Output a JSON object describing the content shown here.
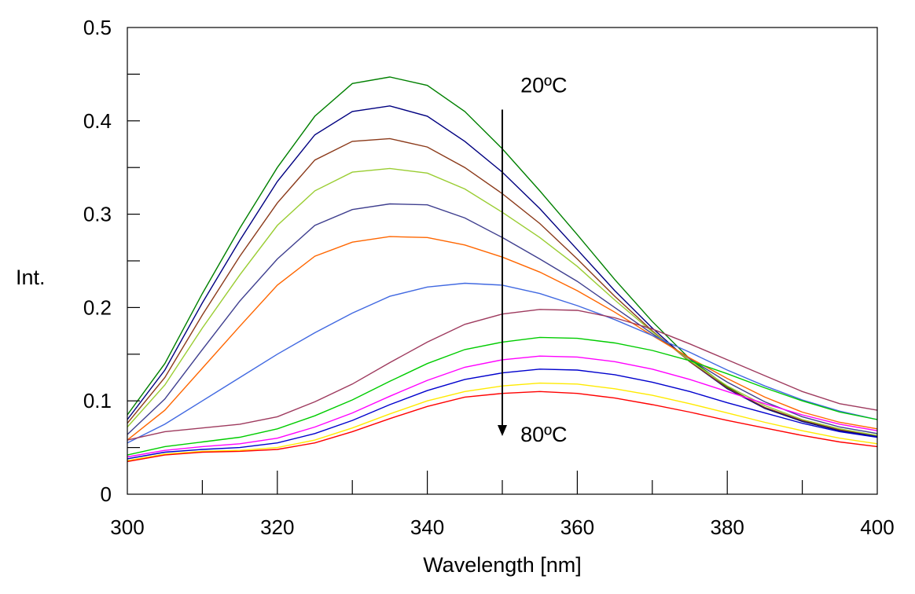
{
  "chart_data": {
    "type": "line",
    "xlabel": "Wavelength [nm]",
    "ylabel": "Int.",
    "xlim": [
      300,
      400
    ],
    "ylim": [
      0,
      0.5
    ],
    "x_ticks": [
      300,
      320,
      340,
      360,
      380,
      400
    ],
    "y_ticks": [
      0,
      0.1,
      0.2,
      0.3,
      0.4,
      0.5
    ],
    "x_minor_step": 10,
    "y_minor_step": 0.05,
    "grid": false,
    "legend": "none",
    "annotations": [
      {
        "text": "20ºC",
        "x": 352,
        "y": 0.438
      },
      {
        "text": "80ºC",
        "x": 352,
        "y": 0.064
      }
    ],
    "arrow": {
      "x": 350,
      "y_start": 0.412,
      "y_end": 0.064
    },
    "x": [
      300,
      305,
      310,
      315,
      320,
      325,
      330,
      335,
      340,
      345,
      350,
      355,
      360,
      365,
      370,
      375,
      380,
      385,
      390,
      395,
      400
    ],
    "series": [
      {
        "color": "#008000",
        "values": [
          0.085,
          0.14,
          0.215,
          0.285,
          0.35,
          0.405,
          0.44,
          0.447,
          0.438,
          0.41,
          0.37,
          0.325,
          0.278,
          0.23,
          0.185,
          0.145,
          0.115,
          0.092,
          0.078,
          0.068,
          0.062
        ]
      },
      {
        "color": "#000080",
        "values": [
          0.08,
          0.133,
          0.205,
          0.272,
          0.335,
          0.385,
          0.41,
          0.416,
          0.405,
          0.378,
          0.345,
          0.306,
          0.262,
          0.218,
          0.178,
          0.142,
          0.113,
          0.092,
          0.078,
          0.068,
          0.062
        ]
      },
      {
        "color": "#8B3A1A",
        "values": [
          0.076,
          0.125,
          0.192,
          0.255,
          0.312,
          0.358,
          0.378,
          0.381,
          0.372,
          0.35,
          0.322,
          0.29,
          0.252,
          0.212,
          0.175,
          0.142,
          0.114,
          0.093,
          0.079,
          0.069,
          0.063
        ]
      },
      {
        "color": "#9ACD32",
        "values": [
          0.072,
          0.117,
          0.178,
          0.235,
          0.288,
          0.325,
          0.345,
          0.349,
          0.344,
          0.327,
          0.302,
          0.275,
          0.244,
          0.208,
          0.174,
          0.143,
          0.116,
          0.095,
          0.08,
          0.07,
          0.063
        ]
      },
      {
        "color": "#3F3F8F",
        "values": [
          0.064,
          0.102,
          0.155,
          0.207,
          0.252,
          0.288,
          0.305,
          0.311,
          0.31,
          0.296,
          0.275,
          0.252,
          0.228,
          0.2,
          0.172,
          0.145,
          0.12,
          0.099,
          0.083,
          0.072,
          0.065
        ]
      },
      {
        "color": "#FF6600",
        "values": [
          0.058,
          0.09,
          0.135,
          0.18,
          0.224,
          0.255,
          0.27,
          0.276,
          0.275,
          0.267,
          0.254,
          0.238,
          0.218,
          0.195,
          0.17,
          0.146,
          0.124,
          0.104,
          0.088,
          0.077,
          0.07
        ]
      },
      {
        "color": "#4169E1",
        "values": [
          0.055,
          0.075,
          0.1,
          0.125,
          0.15,
          0.173,
          0.194,
          0.212,
          0.222,
          0.226,
          0.224,
          0.215,
          0.202,
          0.187,
          0.17,
          0.152,
          0.133,
          0.116,
          0.101,
          0.089,
          0.08
        ]
      },
      {
        "color": "#9E3A5E",
        "values": [
          0.058,
          0.067,
          0.071,
          0.075,
          0.083,
          0.099,
          0.118,
          0.141,
          0.163,
          0.182,
          0.193,
          0.198,
          0.197,
          0.189,
          0.177,
          0.161,
          0.144,
          0.127,
          0.11,
          0.097,
          0.09
        ]
      },
      {
        "color": "#00CC00",
        "values": [
          0.042,
          0.051,
          0.056,
          0.061,
          0.07,
          0.084,
          0.101,
          0.121,
          0.14,
          0.155,
          0.163,
          0.168,
          0.167,
          0.162,
          0.154,
          0.143,
          0.129,
          0.114,
          0.1,
          0.088,
          0.08
        ]
      },
      {
        "color": "#FF00FF",
        "values": [
          0.04,
          0.047,
          0.051,
          0.054,
          0.06,
          0.072,
          0.087,
          0.105,
          0.122,
          0.136,
          0.144,
          0.148,
          0.147,
          0.142,
          0.134,
          0.123,
          0.11,
          0.097,
          0.085,
          0.075,
          0.068
        ]
      },
      {
        "color": "#0000CD",
        "values": [
          0.038,
          0.045,
          0.048,
          0.05,
          0.055,
          0.065,
          0.079,
          0.096,
          0.111,
          0.123,
          0.13,
          0.134,
          0.133,
          0.128,
          0.12,
          0.11,
          0.098,
          0.087,
          0.076,
          0.067,
          0.061
        ]
      },
      {
        "color": "#FFEA00",
        "values": [
          0.036,
          0.043,
          0.046,
          0.047,
          0.05,
          0.058,
          0.071,
          0.086,
          0.1,
          0.11,
          0.116,
          0.119,
          0.118,
          0.113,
          0.106,
          0.097,
          0.087,
          0.077,
          0.068,
          0.06,
          0.054
        ]
      },
      {
        "color": "#FF0000",
        "values": [
          0.035,
          0.042,
          0.045,
          0.046,
          0.048,
          0.055,
          0.067,
          0.081,
          0.094,
          0.104,
          0.108,
          0.11,
          0.108,
          0.103,
          0.096,
          0.088,
          0.079,
          0.071,
          0.063,
          0.056,
          0.051
        ]
      }
    ]
  }
}
